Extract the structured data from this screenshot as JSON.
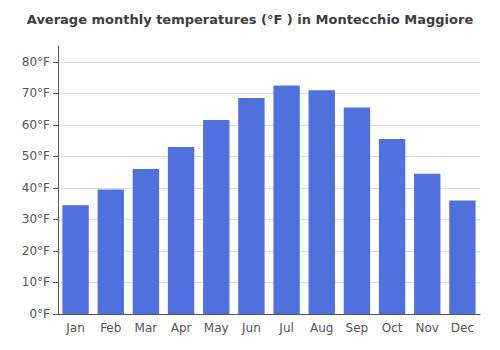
{
  "chart_data": {
    "type": "bar",
    "title": "Average monthly temperatures (°F ) in Montecchio Maggiore",
    "categories": [
      "Jan",
      "Feb",
      "Mar",
      "Apr",
      "May",
      "Jun",
      "Jul",
      "Aug",
      "Sep",
      "Oct",
      "Nov",
      "Dec"
    ],
    "values": [
      34.5,
      39.5,
      46.0,
      53.0,
      61.5,
      68.5,
      72.5,
      71.0,
      65.5,
      55.5,
      44.5,
      36.0
    ],
    "ylim": [
      0,
      85
    ],
    "yticks": [
      {
        "value": 0,
        "label": "0°F"
      },
      {
        "value": 10,
        "label": "10°F"
      },
      {
        "value": 20,
        "label": "20°F"
      },
      {
        "value": 30,
        "label": "30°F"
      },
      {
        "value": 40,
        "label": "40°F"
      },
      {
        "value": 50,
        "label": "50°F"
      },
      {
        "value": 60,
        "label": "60°F"
      },
      {
        "value": 70,
        "label": "70°F"
      },
      {
        "value": 80,
        "label": "80°F"
      }
    ],
    "grid": true
  }
}
